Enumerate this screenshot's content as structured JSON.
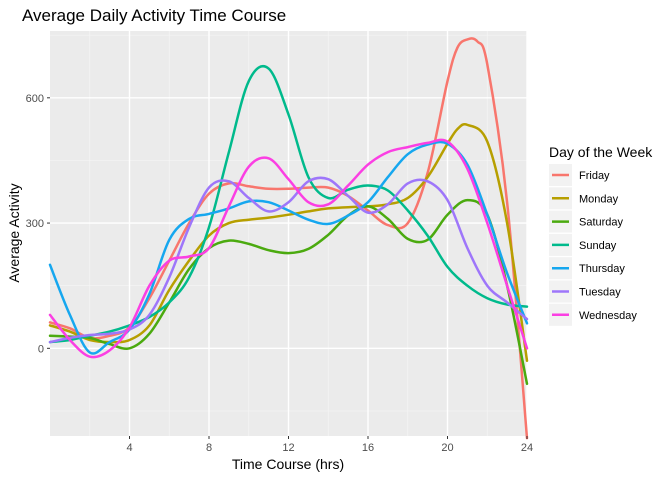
{
  "chart_data": {
    "type": "line",
    "title": "Average Daily Activity Time Course",
    "xlabel": "Time Course (hrs)",
    "ylabel": "Average Activity",
    "xlim": [
      0,
      24
    ],
    "ylim": [
      -210,
      760
    ],
    "x_ticks": [
      4,
      8,
      12,
      16,
      20,
      24
    ],
    "y_ticks": [
      0,
      300,
      600
    ],
    "grid": true,
    "legend": {
      "title": "Day of the Week",
      "position": "right"
    },
    "series": [
      {
        "name": "Friday",
        "color": "#F8766D",
        "points": [
          [
            0,
            62
          ],
          [
            1,
            48
          ],
          [
            2,
            25
          ],
          [
            3,
            30
          ],
          [
            4,
            50
          ],
          [
            5,
            120
          ],
          [
            6,
            210
          ],
          [
            7,
            300
          ],
          [
            8,
            370
          ],
          [
            9,
            395
          ],
          [
            10,
            388
          ],
          [
            11,
            382
          ],
          [
            12,
            382
          ],
          [
            13,
            385
          ],
          [
            14,
            385
          ],
          [
            15,
            365
          ],
          [
            16,
            330
          ],
          [
            17,
            295
          ],
          [
            18,
            300
          ],
          [
            19,
            420
          ],
          [
            20,
            640
          ],
          [
            20.5,
            720
          ],
          [
            21,
            740
          ],
          [
            21.5,
            735
          ],
          [
            22,
            680
          ],
          [
            23,
            350
          ],
          [
            24,
            -215
          ]
        ]
      },
      {
        "name": "Monday",
        "color": "#B79F00",
        "points": [
          [
            0,
            55
          ],
          [
            1,
            40
          ],
          [
            2,
            20
          ],
          [
            3,
            15
          ],
          [
            4,
            20
          ],
          [
            5,
            55
          ],
          [
            6,
            140
          ],
          [
            7,
            210
          ],
          [
            8,
            270
          ],
          [
            9,
            300
          ],
          [
            10,
            308
          ],
          [
            11,
            313
          ],
          [
            12,
            320
          ],
          [
            13,
            328
          ],
          [
            14,
            335
          ],
          [
            15,
            338
          ],
          [
            16,
            340
          ],
          [
            17,
            345
          ],
          [
            18,
            360
          ],
          [
            19,
            410
          ],
          [
            20,
            490
          ],
          [
            20.5,
            525
          ],
          [
            21,
            535
          ],
          [
            22,
            495
          ],
          [
            23,
            300
          ],
          [
            24,
            -30
          ]
        ]
      },
      {
        "name": "Saturday",
        "color": "#4BAA0F",
        "points": [
          [
            0,
            30
          ],
          [
            1,
            28
          ],
          [
            2,
            25
          ],
          [
            3,
            10
          ],
          [
            4,
            0
          ],
          [
            5,
            35
          ],
          [
            6,
            110
          ],
          [
            7,
            190
          ],
          [
            8,
            240
          ],
          [
            9,
            258
          ],
          [
            10,
            250
          ],
          [
            11,
            235
          ],
          [
            12,
            228
          ],
          [
            13,
            238
          ],
          [
            14,
            272
          ],
          [
            15,
            318
          ],
          [
            16,
            340
          ],
          [
            17,
            310
          ],
          [
            18,
            262
          ],
          [
            19,
            260
          ],
          [
            20,
            320
          ],
          [
            21,
            355
          ],
          [
            22,
            320
          ],
          [
            23,
            150
          ],
          [
            24,
            -85
          ]
        ]
      },
      {
        "name": "Sunday",
        "color": "#00BA8C",
        "points": [
          [
            0,
            15
          ],
          [
            1,
            20
          ],
          [
            2,
            30
          ],
          [
            3,
            40
          ],
          [
            4,
            55
          ],
          [
            5,
            75
          ],
          [
            6,
            110
          ],
          [
            7,
            170
          ],
          [
            8,
            290
          ],
          [
            9,
            470
          ],
          [
            10,
            640
          ],
          [
            11,
            670
          ],
          [
            12,
            560
          ],
          [
            13,
            410
          ],
          [
            14,
            360
          ],
          [
            15,
            380
          ],
          [
            16,
            390
          ],
          [
            17,
            378
          ],
          [
            18,
            330
          ],
          [
            19,
            270
          ],
          [
            20,
            195
          ],
          [
            21,
            150
          ],
          [
            22,
            120
          ],
          [
            23,
            105
          ],
          [
            24,
            100
          ]
        ]
      },
      {
        "name": "Thursday",
        "color": "#16A7EF",
        "points": [
          [
            0,
            200
          ],
          [
            1,
            80
          ],
          [
            2,
            -10
          ],
          [
            3,
            15
          ],
          [
            4,
            45
          ],
          [
            5,
            130
          ],
          [
            6,
            260
          ],
          [
            7,
            310
          ],
          [
            8,
            322
          ],
          [
            9,
            335
          ],
          [
            10,
            352
          ],
          [
            11,
            350
          ],
          [
            12,
            330
          ],
          [
            13,
            308
          ],
          [
            14,
            298
          ],
          [
            15,
            318
          ],
          [
            16,
            350
          ],
          [
            17,
            410
          ],
          [
            18,
            465
          ],
          [
            19,
            488
          ],
          [
            20,
            490
          ],
          [
            21,
            440
          ],
          [
            22,
            320
          ],
          [
            23,
            180
          ],
          [
            24,
            60
          ]
        ]
      },
      {
        "name": "Tuesday",
        "color": "#9E76FA",
        "points": [
          [
            0,
            15
          ],
          [
            1,
            25
          ],
          [
            2,
            32
          ],
          [
            3,
            35
          ],
          [
            4,
            45
          ],
          [
            5,
            80
          ],
          [
            6,
            170
          ],
          [
            7,
            290
          ],
          [
            8,
            385
          ],
          [
            9,
            400
          ],
          [
            10,
            360
          ],
          [
            11,
            328
          ],
          [
            12,
            350
          ],
          [
            13,
            400
          ],
          [
            14,
            405
          ],
          [
            15,
            365
          ],
          [
            16,
            325
          ],
          [
            17,
            345
          ],
          [
            18,
            395
          ],
          [
            19,
            400
          ],
          [
            20,
            355
          ],
          [
            21,
            240
          ],
          [
            22,
            150
          ],
          [
            23,
            110
          ],
          [
            24,
            70
          ]
        ]
      },
      {
        "name": "Wednesday",
        "color": "#FB3FE3",
        "points": [
          [
            0,
            80
          ],
          [
            1,
            20
          ],
          [
            2,
            -20
          ],
          [
            3,
            -5
          ],
          [
            4,
            50
          ],
          [
            5,
            150
          ],
          [
            6,
            210
          ],
          [
            7,
            220
          ],
          [
            8,
            240
          ],
          [
            9,
            340
          ],
          [
            10,
            435
          ],
          [
            11,
            455
          ],
          [
            12,
            405
          ],
          [
            13,
            350
          ],
          [
            14,
            345
          ],
          [
            15,
            390
          ],
          [
            16,
            440
          ],
          [
            17,
            470
          ],
          [
            18,
            482
          ],
          [
            19,
            492
          ],
          [
            20,
            495
          ],
          [
            21,
            430
          ],
          [
            22,
            300
          ],
          [
            23,
            150
          ],
          [
            24,
            0
          ]
        ]
      }
    ]
  }
}
